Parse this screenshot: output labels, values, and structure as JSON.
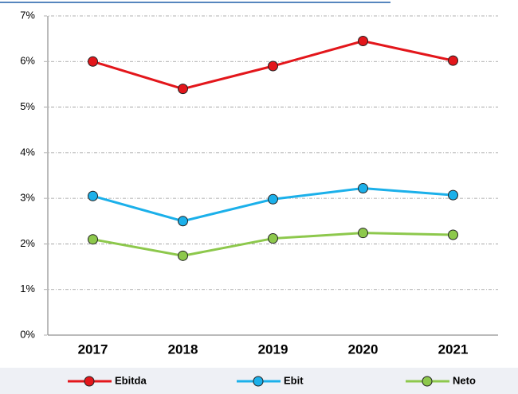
{
  "chart_data": {
    "type": "line",
    "categories": [
      "2017",
      "2018",
      "2019",
      "2020",
      "2021"
    ],
    "series": [
      {
        "name": "Ebitda",
        "color": "#e3161b",
        "values": [
          6.0,
          5.4,
          5.9,
          6.45,
          6.02
        ]
      },
      {
        "name": "Ebit",
        "color": "#1bb0ea",
        "values": [
          3.05,
          2.5,
          2.98,
          3.22,
          3.07
        ]
      },
      {
        "name": "Neto",
        "color": "#8dc84c",
        "values": [
          2.1,
          1.74,
          2.12,
          2.24,
          2.2
        ]
      }
    ],
    "ylim": [
      0,
      7
    ],
    "yticks": [
      {
        "value": 0,
        "label": "0%"
      },
      {
        "value": 1,
        "label": "1%"
      },
      {
        "value": 2,
        "label": "2%"
      },
      {
        "value": 3,
        "label": "3%"
      },
      {
        "value": 4,
        "label": "4%"
      },
      {
        "value": 5,
        "label": "5%"
      },
      {
        "value": 6,
        "label": "6%"
      },
      {
        "value": 7,
        "label": "7%"
      }
    ],
    "grid": true,
    "legend": "bottom"
  }
}
